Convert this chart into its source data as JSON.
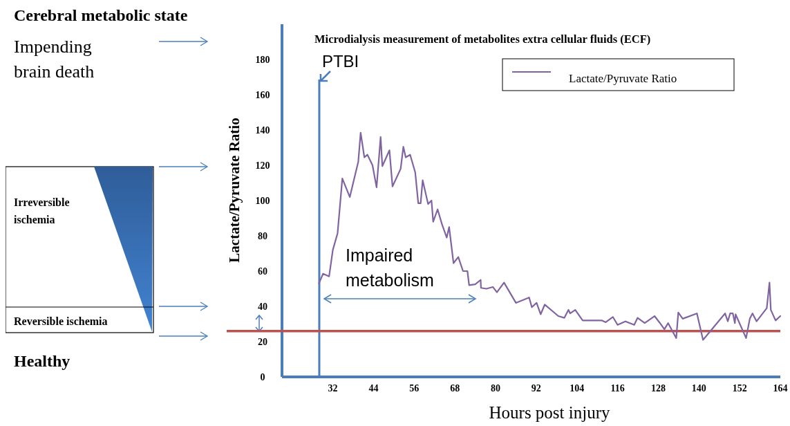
{
  "chart_data": {
    "type": "line",
    "title": "Microdialysis measurement of metabolites extra cellular fluids (ECF)",
    "xlabel": "Hours post injury",
    "ylabel": "Lactate/Pyruvate Ratio",
    "xlim": [
      17,
      164
    ],
    "xticks": [
      32,
      44,
      56,
      68,
      80,
      92,
      104,
      116,
      128,
      140,
      152,
      164
    ],
    "ylim": [
      0,
      200
    ],
    "yticks": [
      0,
      20,
      40,
      60,
      80,
      100,
      120,
      140,
      160,
      180
    ],
    "legend": "top right",
    "ref_lines": [
      {
        "axis": "x",
        "value": 28,
        "label": "PTBI",
        "color": "#4a7ebb"
      },
      {
        "axis": "y",
        "value": 26,
        "color": "#c0504d"
      }
    ],
    "annotations": [
      "Cerebral metabolic state",
      "Impending\nbrain death",
      "Irreversible\nischemia",
      "Reversible ischemia",
      "Healthy",
      "Impaired\nmetabolism"
    ],
    "series": [
      {
        "name": "Lactate/Pyruvate Ratio",
        "color": "#8064a2",
        "x": [
          27.9,
          29.1,
          30.9,
          32,
          33.4,
          34.8,
          37,
          39.5,
          40.2,
          41.3,
          42.2,
          43.7,
          44.9,
          46.1,
          46.6,
          48.7,
          49.6,
          52,
          52.8,
          53.5,
          54.8,
          56.3,
          57.2,
          57.9,
          58.5,
          60.1,
          61.1,
          61.6,
          62.9,
          64.2,
          65.6,
          66.3,
          67.6,
          69,
          70.4,
          71.7,
          72.2,
          74,
          75.6,
          75.7,
          77.3,
          79.2,
          80.4,
          82.5,
          86,
          89.9,
          90.7,
          92.1,
          93.3,
          94.5,
          98.5,
          100.3,
          101.5,
          102,
          103.5,
          105.7,
          111.4,
          112.5,
          114.6,
          116,
          118.3,
          120.9,
          121.9,
          124,
          126.9,
          128.5,
          129.8,
          130.9,
          133.3,
          133.9,
          135.2,
          139.4,
          141.2,
          147.7,
          148.5,
          149.2,
          150,
          150.6,
          150.8,
          153.9,
          155,
          155.8,
          157,
          160,
          160.8,
          161.2,
          162.6,
          164
        ],
        "values": [
          53,
          58.5,
          57,
          72,
          81.5,
          112.5,
          102,
          122,
          138.5,
          124.5,
          126,
          120,
          107.5,
          136,
          119.5,
          128.5,
          108,
          118,
          130.5,
          124.5,
          126,
          116,
          98.5,
          98.5,
          111.5,
          98,
          100,
          88,
          95,
          86.5,
          79,
          85,
          64.5,
          68,
          60,
          60,
          52,
          52.5,
          55,
          50.5,
          50,
          51,
          48,
          53.5,
          42,
          45,
          39.5,
          42,
          35.5,
          41,
          34.5,
          33.5,
          38,
          36,
          38,
          32,
          32,
          31,
          34,
          29.5,
          31.5,
          29.5,
          33.5,
          30.5,
          34.5,
          30.5,
          27,
          30.5,
          22,
          36.5,
          33,
          36,
          21,
          36,
          31.5,
          36,
          36,
          30.5,
          35.5,
          22,
          33,
          36,
          31.5,
          39,
          53.5,
          38,
          32,
          34.5
        ]
      }
    ]
  }
}
